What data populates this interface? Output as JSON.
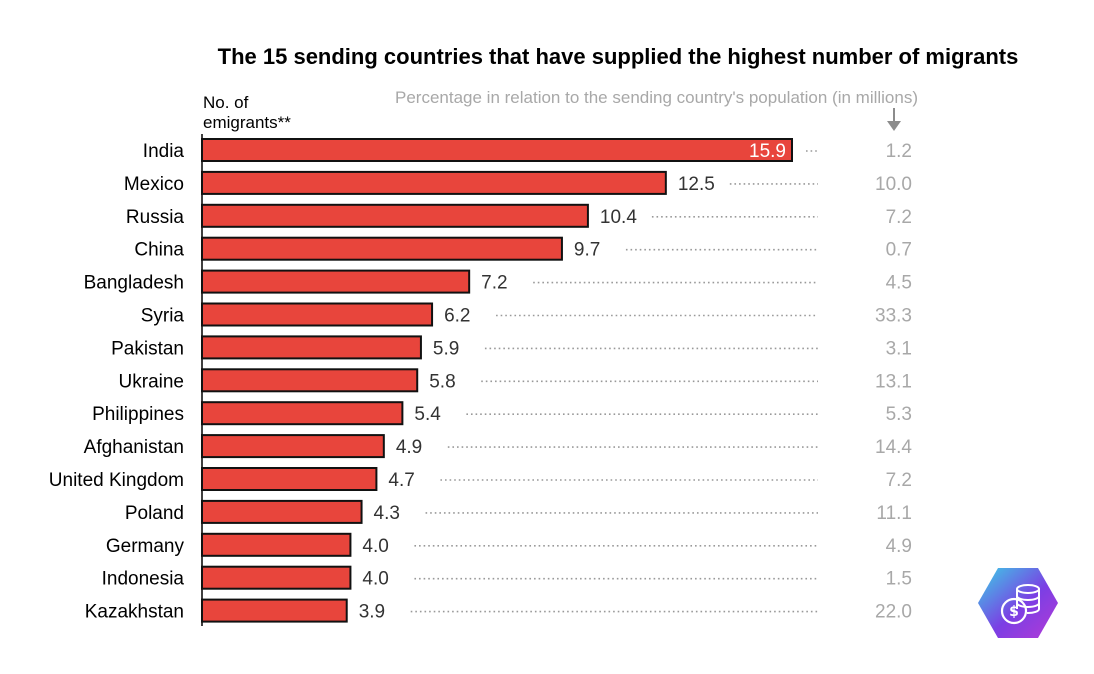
{
  "chart_data": {
    "type": "bar",
    "orientation": "horizontal",
    "title": "The 15 sending countries that have supplied the highest number of migrants",
    "subtitle": "Percentage in relation to the sending country's population (in millions)",
    "value_header": "No. of emigrants**",
    "categories": [
      "India",
      "Mexico",
      "Russia",
      "China",
      "Bangladesh",
      "Syria",
      "Pakistan",
      "Ukraine",
      "Philippines",
      "Afghanistan",
      "United Kingdom",
      "Poland",
      "Germany",
      "Indonesia",
      "Kazakhstan"
    ],
    "values": [
      "15.9",
      "12.5",
      "10.4",
      "9.7",
      "7.2",
      "6.2",
      "5.9",
      "5.8",
      "5.4",
      "4.9",
      "4.7",
      "4.3",
      "4.0",
      "4.0",
      "3.9"
    ],
    "percentages": [
      "1.2",
      "10.0",
      "7.2",
      "0.7",
      "4.5",
      "33.3",
      "3.1",
      "13.1",
      "5.3",
      "14.4",
      "7.2",
      "11.1",
      "4.9",
      "1.5",
      "22.0"
    ],
    "xlim": [
      0,
      16
    ],
    "grid": false,
    "colors": {
      "bar": "#e8453c",
      "bar_outline": "#111111",
      "percent_text": "#a8a8a8",
      "leader_dots": "#999999"
    }
  },
  "logo": {
    "name": "coin-stack-logo-icon",
    "colors": [
      "#3ad1e6",
      "#7b3fe4",
      "#b43ad6"
    ]
  }
}
